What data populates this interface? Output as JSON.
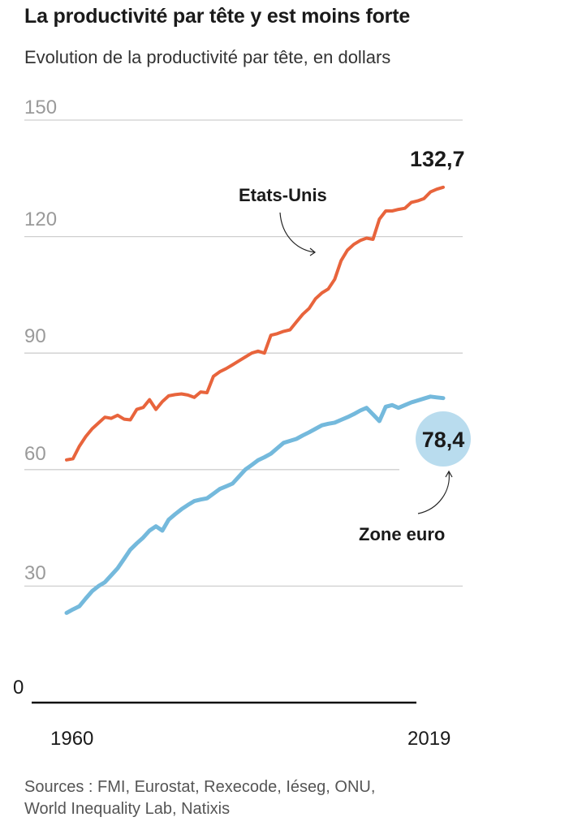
{
  "title": "La productivité par tête y est moins forte",
  "subtitle": "Evolution de la productivité par tête, en dollars",
  "sources": [
    "Sources : FMI, Eurostat, Rexecode, Iéseg, ONU,",
    "World Inequality Lab, Natixis"
  ],
  "chart_data": {
    "type": "line",
    "title": "La productivité par tête y est moins forte",
    "subtitle": "Evolution de la productivité par tête, en dollars",
    "ylim": [
      0,
      150
    ],
    "yticks": [
      "0",
      "30",
      "60",
      "90",
      "120",
      "150"
    ],
    "xticks": [
      "1960",
      "2019"
    ],
    "xlim": [
      1960,
      2019
    ],
    "grid": true,
    "colors": {
      "us": "#e8643c",
      "euro": "#74b9dc",
      "euro_badge": "#b9dcee"
    },
    "series": [
      {
        "name": "Etats-Unis",
        "end_label": "132,7",
        "x": [
          1960,
          1961,
          1962,
          1963,
          1964,
          1965,
          1966,
          1967,
          1968,
          1969,
          1970,
          1971,
          1972,
          1973,
          1974,
          1975,
          1976,
          1977,
          1978,
          1979,
          1980,
          1981,
          1982,
          1983,
          1984,
          1985,
          1986,
          1987,
          1988,
          1989,
          1990,
          1991,
          1992,
          1993,
          1994,
          1995,
          1996,
          1997,
          1998,
          1999,
          2000,
          2001,
          2002,
          2003,
          2004,
          2005,
          2006,
          2007,
          2008,
          2009,
          2010,
          2011,
          2012,
          2013,
          2014,
          2015,
          2016,
          2017,
          2018,
          2019
        ],
        "values": [
          62.5,
          62.8,
          66,
          68.5,
          70.5,
          72,
          73.5,
          73.2,
          74,
          73,
          72.8,
          75.5,
          76,
          78,
          75.5,
          77.5,
          79,
          79.3,
          79.5,
          79.2,
          78.6,
          80,
          79.8,
          84,
          85.2,
          86,
          87,
          88,
          89,
          90,
          90.5,
          90,
          94.6,
          95,
          95.6,
          96,
          98,
          100,
          101.5,
          104,
          105.5,
          106.5,
          109,
          113.8,
          116.5,
          118,
          119,
          119.6,
          119.3,
          124.5,
          126.6,
          126.6,
          127,
          127.3,
          128.8,
          129.2,
          129.8,
          131.5,
          132.2,
          132.7
        ]
      },
      {
        "name": "Zone euro",
        "end_label": "78,4",
        "x": [
          1960,
          1961,
          1962,
          1963,
          1964,
          1965,
          1966,
          1967,
          1968,
          1969,
          1970,
          1971,
          1972,
          1973,
          1974,
          1975,
          1976,
          1977,
          1978,
          1979,
          1980,
          1981,
          1982,
          1983,
          1984,
          1985,
          1986,
          1987,
          1988,
          1989,
          1990,
          1991,
          1992,
          1993,
          1994,
          1995,
          1996,
          1997,
          1998,
          1999,
          2000,
          2001,
          2002,
          2003,
          2004,
          2005,
          2006,
          2007,
          2008,
          2009,
          2010,
          2011,
          2012,
          2013,
          2014,
          2015,
          2016,
          2017,
          2018,
          2019
        ],
        "values": [
          23.1,
          24,
          24.8,
          26.8,
          28.7,
          30,
          31,
          32.8,
          34.6,
          37,
          39.4,
          41,
          42.5,
          44.3,
          45.4,
          44.3,
          47.1,
          48.5,
          49.8,
          50.9,
          51.9,
          52.3,
          52.6,
          53.8,
          55,
          55.7,
          56.4,
          58.2,
          60,
          61.2,
          62.4,
          63.2,
          64.1,
          65.5,
          66.9,
          67.4,
          67.9,
          68.8,
          69.6,
          70.5,
          71.4,
          71.8,
          72.1,
          72.8,
          73.5,
          74.3,
          75.2,
          75.9,
          74.2,
          72.5,
          76.2,
          76.6,
          75.9,
          76.6,
          77.3,
          77.8,
          78.3,
          78.8,
          78.6,
          78.4
        ]
      }
    ]
  }
}
